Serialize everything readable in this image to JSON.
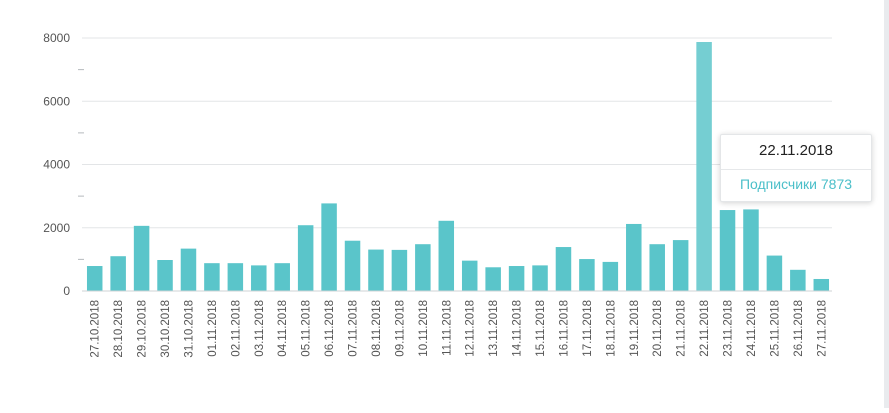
{
  "chart_data": {
    "type": "bar",
    "categories": [
      "27.10.2018",
      "28.10.2018",
      "29.10.2018",
      "30.10.2018",
      "31.10.2018",
      "01.11.2018",
      "02.11.2018",
      "03.11.2018",
      "04.11.2018",
      "05.11.2018",
      "06.11.2018",
      "07.11.2018",
      "08.11.2018",
      "09.11.2018",
      "10.11.2018",
      "11.11.2018",
      "12.11.2018",
      "13.11.2018",
      "14.11.2018",
      "15.11.2018",
      "16.11.2018",
      "17.11.2018",
      "18.11.2018",
      "19.11.2018",
      "20.11.2018",
      "21.11.2018",
      "22.11.2018",
      "23.11.2018",
      "24.11.2018",
      "25.11.2018",
      "26.11.2018",
      "27.11.2018"
    ],
    "series": [
      {
        "name": "Подписчики",
        "values": [
          790,
          1100,
          2060,
          980,
          1340,
          880,
          880,
          810,
          880,
          2080,
          2770,
          1590,
          1310,
          1300,
          1480,
          2220,
          960,
          750,
          790,
          810,
          1390,
          1010,
          920,
          2120,
          1480,
          1610,
          7873,
          2560,
          2580,
          1120,
          670,
          380
        ]
      }
    ],
    "yticks": [
      "0",
      "2000",
      "4000",
      "6000",
      "8000"
    ],
    "ylim": [
      0,
      8000
    ],
    "grid": true,
    "colors": {
      "bar": "#5ac5ca",
      "bar_highlight": "#75ced2",
      "grid": "#e3e5e7",
      "tooltip_value": "#4bbfc9"
    },
    "highlight_index": 26,
    "tooltip": {
      "date": "22.11.2018",
      "label": "Подписчики 7873"
    }
  }
}
